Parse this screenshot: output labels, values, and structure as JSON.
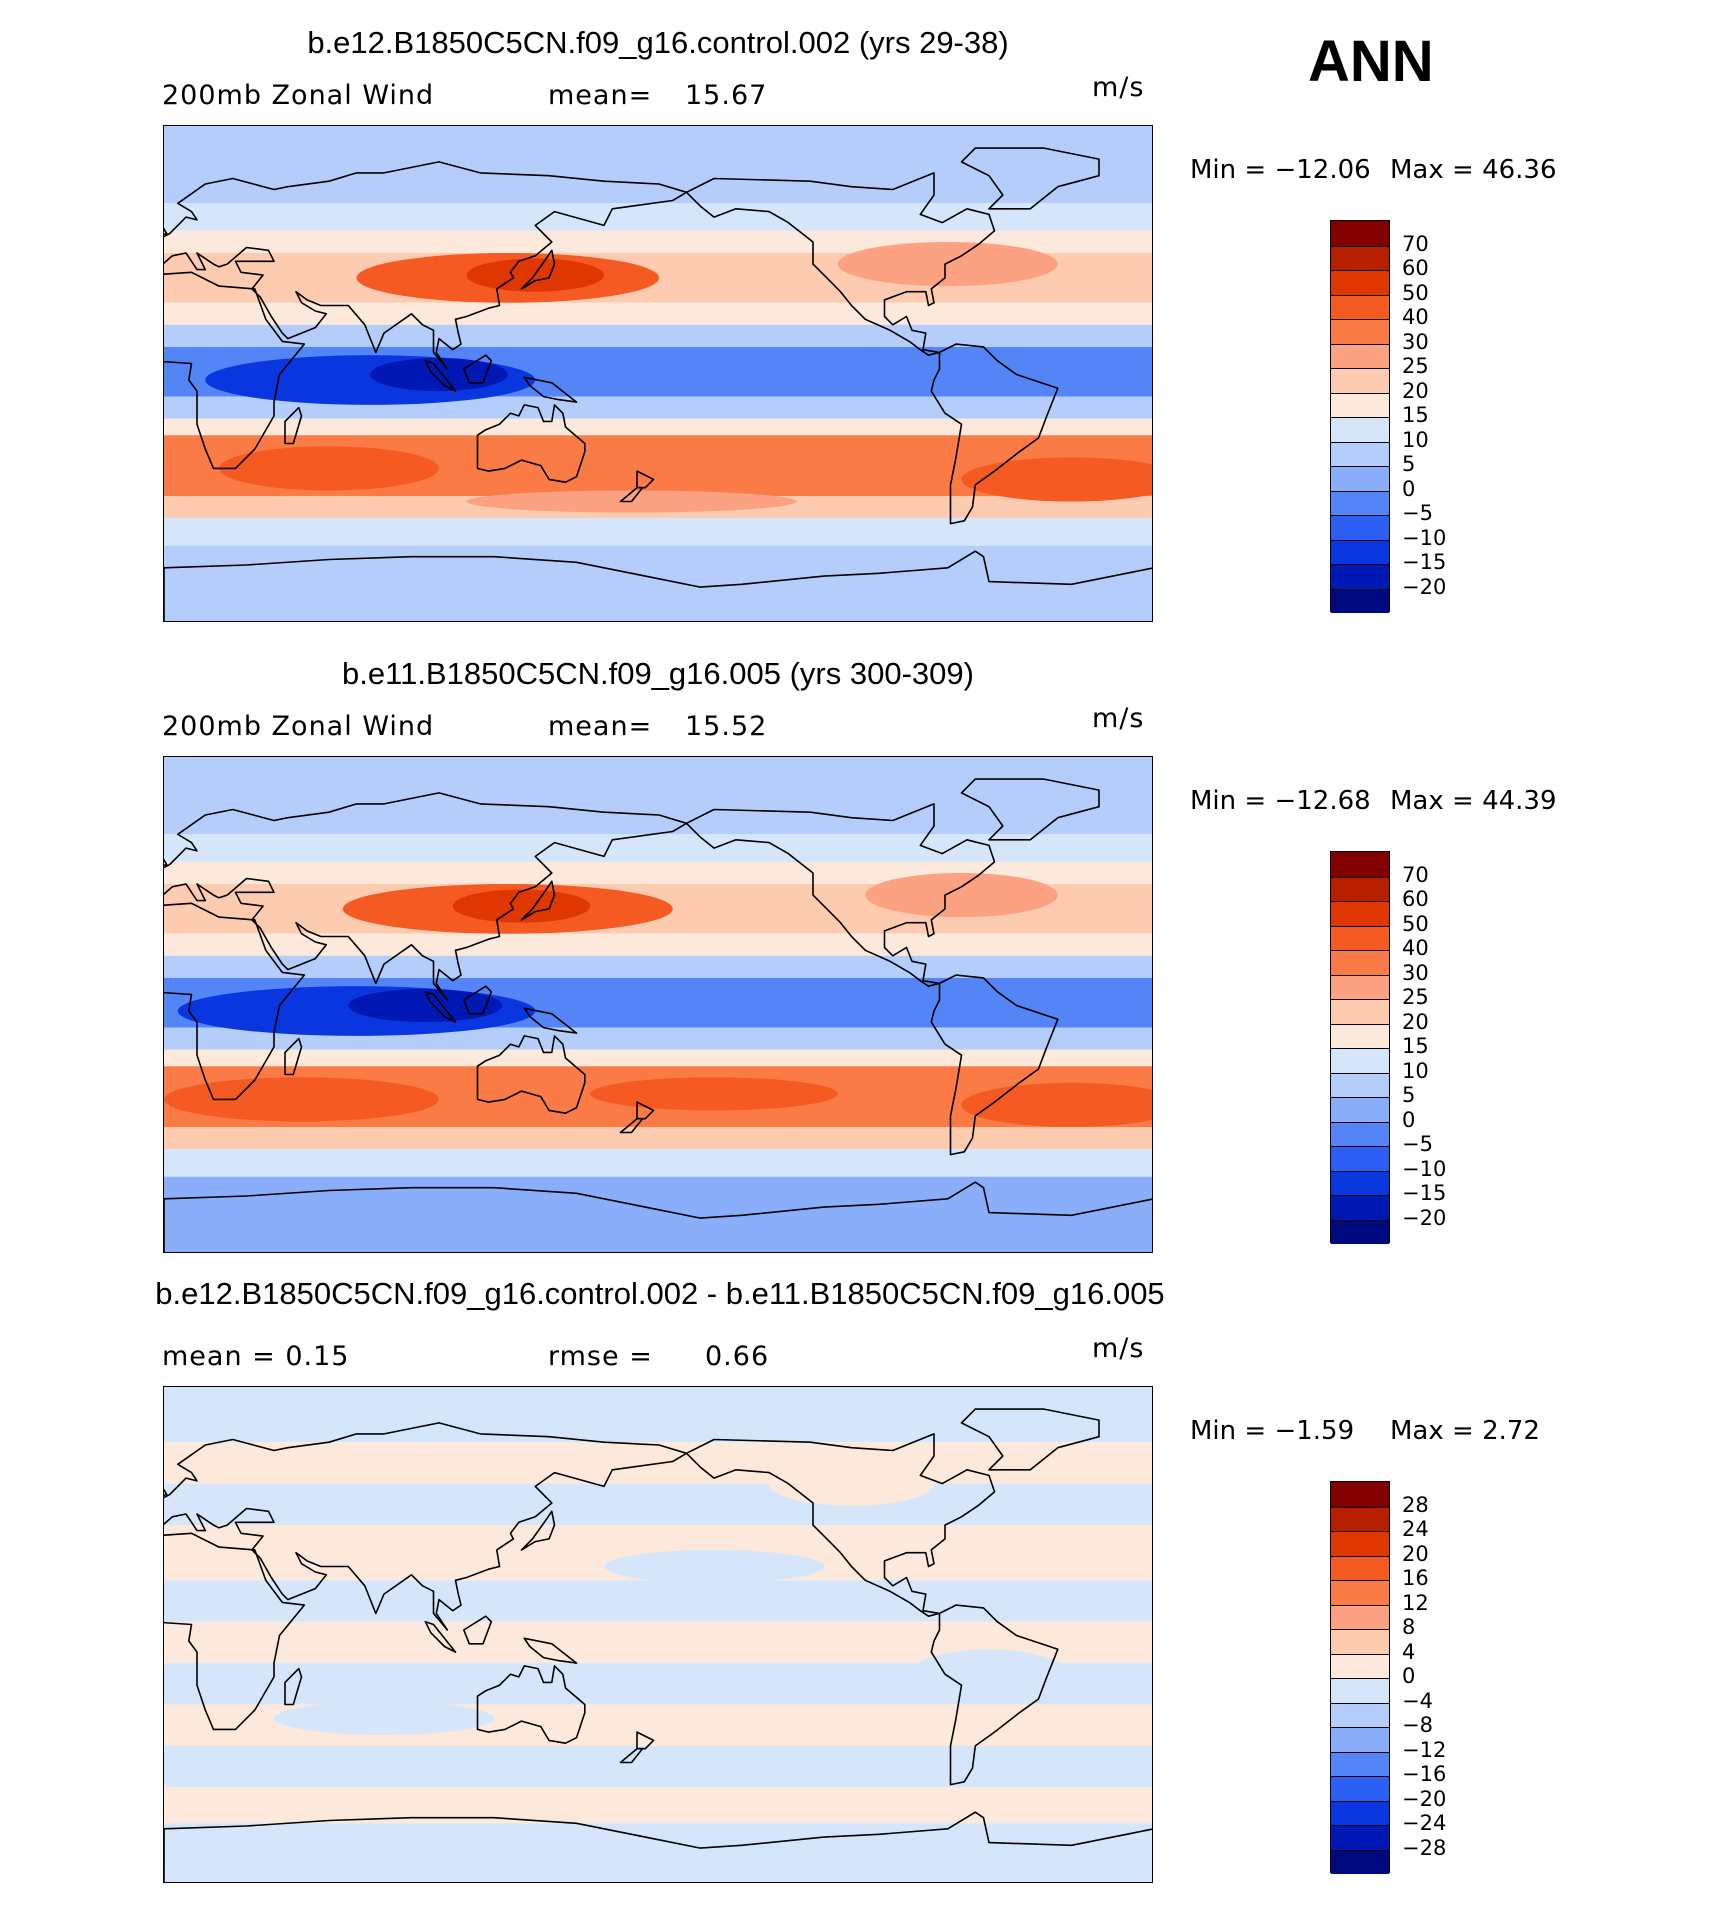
{
  "figure": {
    "season_label": "ANN",
    "panels": [
      {
        "title": "b.e12.B1850C5CN.f09_g16.control.002 (yrs 29-38)",
        "left_text": "200mb  Zonal  Wind",
        "mid_label": "mean=",
        "mid_value": "15.67",
        "units": "m/s",
        "min_text": "Min  =  −12.06",
        "max_text": "Max  =    46.36",
        "colorbar_labels": [
          "70",
          "60",
          "50",
          "40",
          "30",
          "25",
          "20",
          "15",
          "10",
          "5",
          "0",
          "−5",
          "−10",
          "−15",
          "−20"
        ]
      },
      {
        "title": "b.e11.B1850C5CN.f09_g16.005 (yrs 300-309)",
        "left_text": "200mb  Zonal  Wind",
        "mid_label": "mean=",
        "mid_value": "15.52",
        "units": "m/s",
        "min_text": "Min  =  −12.68",
        "max_text": "Max  =    44.39",
        "colorbar_labels": [
          "70",
          "60",
          "50",
          "40",
          "30",
          "25",
          "20",
          "15",
          "10",
          "5",
          "0",
          "−5",
          "−10",
          "−15",
          "−20"
        ]
      },
      {
        "title": "b.e12.B1850C5CN.f09_g16.control.002 - b.e11.B1850C5CN.f09_g16.005",
        "left_text": "mean  =    0.15",
        "mid_label": "rmse  =",
        "mid_value": "0.66",
        "units": "m/s",
        "min_text": "Min  =   −1.59",
        "max_text": "Max  =     2.72",
        "colorbar_labels": [
          "28",
          "24",
          "20",
          "16",
          "12",
          "8",
          "4",
          "0",
          "−4",
          "−8",
          "−12",
          "−16",
          "−20",
          "−24",
          "−28"
        ]
      }
    ],
    "colormap": [
      "#830000",
      "#b81e00",
      "#e03600",
      "#f55a22",
      "#fa7b45",
      "#fca283",
      "#fdcbb0",
      "#fde9db",
      "#d5e6fb",
      "#b4cdfa",
      "#8aaef9",
      "#5485f7",
      "#2b5ef2",
      "#0a36e0",
      "#0019b5",
      "#000a80"
    ]
  }
}
